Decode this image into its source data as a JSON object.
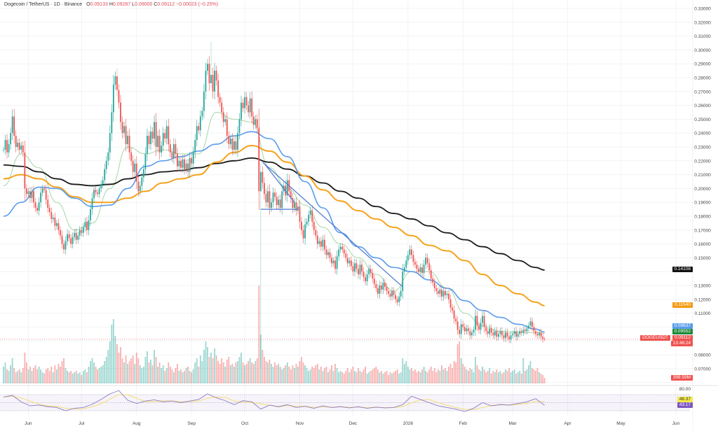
{
  "header": {
    "symbol": "Dogecoin / TetherUS · 1D · Binance",
    "open_label": "O",
    "open": "0.09133",
    "high_label": "H",
    "high": "0.09287",
    "low_label": "L",
    "low": "0.09000",
    "close_label": "C",
    "close": "0.09112",
    "change": "−0.00023 (−0.25%)"
  },
  "colors": {
    "up": "#26a69a",
    "down": "#ef5350",
    "ma200": "#1a1a1a",
    "ma100": "#f7a21b",
    "ma50": "#5b9cec",
    "ma20": "#a5d6a7",
    "trendline": "#4a78d0",
    "rsi": "#8e7cc3",
    "rsi_ma": "#f3e08a"
  },
  "tags": {
    "ma200": "0.14108",
    "ma100": "0.11540",
    "ma50": "0.09637",
    "ma20": "0.09552",
    "last_price": "0.09112",
    "countdown": "13:46:24",
    "symbol": "DOGEUSDT",
    "volume": "399.59M",
    "rsi_top": "80.00",
    "rsi_ma": "48.37",
    "rsi": "43.17"
  },
  "chart_data": {
    "type": "candlestick",
    "interval": "1D",
    "first_date": "2025-05-18",
    "y_axis": {
      "range": [
        0.06,
        0.335
      ],
      "scale": "linear",
      "position": "right",
      "tick_labels": [
        "0.33000",
        "0.32000",
        "0.31000",
        "0.30000",
        "0.29000",
        "0.28000",
        "0.27000",
        "0.26000",
        "0.25000",
        "0.24000",
        "0.23000",
        "0.22000",
        "0.21000",
        "0.20000",
        "0.19000",
        "0.18000",
        "0.17000",
        "0.16000",
        "0.15000",
        "0.13000",
        "0.12000",
        "0.11000",
        "0.08000",
        "0.07000"
      ]
    },
    "x_axis": {
      "tick_labels": [
        {
          "label": "Jun",
          "date": "2025-06-01"
        },
        {
          "label": "Jul",
          "date": "2025-07-01"
        },
        {
          "label": "Aug",
          "date": "2025-08-01"
        },
        {
          "label": "Sep",
          "date": "2025-09-01"
        },
        {
          "label": "Oct",
          "date": "2025-10-01"
        },
        {
          "label": "Nov",
          "date": "2025-11-01"
        },
        {
          "label": "Dec",
          "date": "2025-12-01"
        },
        {
          "label": "2026",
          "date": "2026-01-01"
        },
        {
          "label": "Feb",
          "date": "2026-02-01"
        },
        {
          "label": "Mar",
          "date": "2026-03-01"
        },
        {
          "label": "Apr",
          "date": "2026-04-01"
        },
        {
          "label": "May",
          "date": "2026-05-01"
        },
        {
          "label": "Jun",
          "date": "2026-06-01"
        }
      ]
    },
    "grid": true,
    "closes": [
      0.228,
      0.235,
      0.226,
      0.232,
      0.24,
      0.252,
      0.238,
      0.23,
      0.233,
      0.228,
      0.231,
      0.226,
      0.2,
      0.196,
      0.198,
      0.193,
      0.198,
      0.19,
      0.186,
      0.184,
      0.19,
      0.197,
      0.2,
      0.199,
      0.192,
      0.186,
      0.183,
      0.178,
      0.179,
      0.173,
      0.175,
      0.17,
      0.166,
      0.16,
      0.156,
      0.162,
      0.167,
      0.164,
      0.16,
      0.165,
      0.168,
      0.163,
      0.166,
      0.17,
      0.168,
      0.172,
      0.176,
      0.17,
      0.177,
      0.185,
      0.193,
      0.199,
      0.197,
      0.196,
      0.2,
      0.203,
      0.206,
      0.214,
      0.22,
      0.226,
      0.24,
      0.255,
      0.275,
      0.281,
      0.271,
      0.262,
      0.248,
      0.24,
      0.245,
      0.232,
      0.238,
      0.226,
      0.22,
      0.212,
      0.218,
      0.205,
      0.198,
      0.202,
      0.208,
      0.214,
      0.225,
      0.238,
      0.232,
      0.241,
      0.236,
      0.248,
      0.23,
      0.238,
      0.226,
      0.231,
      0.24,
      0.236,
      0.245,
      0.232,
      0.226,
      0.222,
      0.232,
      0.225,
      0.216,
      0.22,
      0.215,
      0.221,
      0.214,
      0.218,
      0.212,
      0.222,
      0.218,
      0.226,
      0.235,
      0.245,
      0.242,
      0.252,
      0.256,
      0.27,
      0.285,
      0.29,
      0.276,
      0.282,
      0.27,
      0.285,
      0.278,
      0.266,
      0.262,
      0.255,
      0.248,
      0.25,
      0.238,
      0.232,
      0.236,
      0.228,
      0.234,
      0.228,
      0.24,
      0.25,
      0.262,
      0.258,
      0.266,
      0.26,
      0.255,
      0.265,
      0.252,
      0.246,
      0.25,
      0.244,
      0.198,
      0.212,
      0.204,
      0.196,
      0.19,
      0.198,
      0.186,
      0.19,
      0.197,
      0.194,
      0.188,
      0.192,
      0.186,
      0.198,
      0.202,
      0.195,
      0.206,
      0.198,
      0.193,
      0.186,
      0.19,
      0.184,
      0.187,
      0.176,
      0.17,
      0.164,
      0.174,
      0.176,
      0.181,
      0.184,
      0.176,
      0.17,
      0.166,
      0.16,
      0.162,
      0.158,
      0.163,
      0.156,
      0.152,
      0.154,
      0.15,
      0.146,
      0.148,
      0.142,
      0.151,
      0.156,
      0.158,
      0.156,
      0.153,
      0.15,
      0.146,
      0.148,
      0.144,
      0.14,
      0.146,
      0.142,
      0.138,
      0.145,
      0.14,
      0.136,
      0.133,
      0.138,
      0.142,
      0.139,
      0.135,
      0.131,
      0.128,
      0.124,
      0.13,
      0.127,
      0.132,
      0.129,
      0.126,
      0.124,
      0.122,
      0.126,
      0.123,
      0.12,
      0.118,
      0.122,
      0.126,
      0.14,
      0.143,
      0.148,
      0.152,
      0.156,
      0.152,
      0.147,
      0.145,
      0.142,
      0.14,
      0.143,
      0.139,
      0.145,
      0.15,
      0.146,
      0.141,
      0.135,
      0.132,
      0.128,
      0.126,
      0.124,
      0.127,
      0.122,
      0.126,
      0.123,
      0.124,
      0.12,
      0.114,
      0.112,
      0.106,
      0.104,
      0.098,
      0.095,
      0.102,
      0.1,
      0.097,
      0.099,
      0.097,
      0.094,
      0.096,
      0.098,
      0.108,
      0.101,
      0.098,
      0.103,
      0.108,
      0.1,
      0.097,
      0.095,
      0.099,
      0.096,
      0.094,
      0.097,
      0.093,
      0.095,
      0.097,
      0.094,
      0.092,
      0.096,
      0.093,
      0.091,
      0.094,
      0.095,
      0.097,
      0.093,
      0.095,
      0.097,
      0.096,
      0.098,
      0.097,
      0.099,
      0.101,
      0.104,
      0.1,
      0.097,
      0.095,
      0.094,
      0.096,
      0.093,
      0.09133,
      0.09112
    ],
    "extreme_wicks": [
      {
        "date": "2025-07-21",
        "high": 0.287
      },
      {
        "date": "2025-09-12",
        "high": 0.306
      },
      {
        "date": "2025-10-10",
        "low": 0.07
      }
    ],
    "volume_billions": [
      1.2,
      1.5,
      1.0,
      0.9,
      1.3,
      1.8,
      1.1,
      0.8,
      0.9,
      1.0,
      0.8,
      1.1,
      2.2,
      1.5,
      1.0,
      1.2,
      0.9,
      1.1,
      1.3,
      1.0,
      1.2,
      1.0,
      0.8,
      0.7,
      1.0,
      1.1,
      0.9,
      1.2,
      0.8,
      1.3,
      1.0,
      1.4,
      1.2,
      1.6,
      1.8,
      1.1,
      0.9,
      0.8,
      0.9,
      0.7,
      0.8,
      0.9,
      0.7,
      0.8,
      0.6,
      0.9,
      1.0,
      0.8,
      1.2,
      1.6,
      1.8,
      1.5,
      1.2,
      1.0,
      1.1,
      1.2,
      1.3,
      1.6,
      1.9,
      2.4,
      3.0,
      4.2,
      4.6,
      3.4,
      2.8,
      2.2,
      2.6,
      1.8,
      1.5,
      2.0,
      1.4,
      1.6,
      1.8,
      2.0,
      1.4,
      2.2,
      1.8,
      1.3,
      1.1,
      1.2,
      1.9,
      2.3,
      1.5,
      1.7,
      1.3,
      2.4,
      1.9,
      1.2,
      1.5,
      1.1,
      1.3,
      0.9,
      1.1,
      1.5,
      1.2,
      1.0,
      0.8,
      1.1,
      1.4,
      0.9,
      1.0,
      0.8,
      0.9,
      1.1,
      1.2,
      0.9,
      0.8,
      1.0,
      1.5,
      1.8,
      1.2,
      2.0,
      1.6,
      2.4,
      3.0,
      2.6,
      1.9,
      2.2,
      1.8,
      2.5,
      2.0,
      1.6,
      1.4,
      1.8,
      1.5,
      1.2,
      1.7,
      1.9,
      1.3,
      1.4,
      1.2,
      1.5,
      1.6,
      1.9,
      2.2,
      1.5,
      1.3,
      1.4,
      1.6,
      1.8,
      1.5,
      1.4,
      1.6,
      1.8,
      7.0,
      3.5,
      2.4,
      1.9,
      1.6,
      1.5,
      1.7,
      1.4,
      1.2,
      1.5,
      1.3,
      1.4,
      1.2,
      1.0,
      1.1,
      1.3,
      1.5,
      1.2,
      1.0,
      1.3,
      1.1,
      1.4,
      1.2,
      1.6,
      1.9,
      1.5,
      1.3,
      1.1,
      0.9,
      1.0,
      1.2,
      1.1,
      1.3,
      1.4,
      1.0,
      1.2,
      0.9,
      1.1,
      1.2,
      0.8,
      1.0,
      1.3,
      0.9,
      1.4,
      1.1,
      0.8,
      0.9,
      0.8,
      0.7,
      0.9,
      1.1,
      0.8,
      1.0,
      1.2,
      0.9,
      0.8,
      1.1,
      0.9,
      0.8,
      1.0,
      1.2,
      0.7,
      0.8,
      0.9,
      1.0,
      1.1,
      1.2,
      1.0,
      0.8,
      0.9,
      0.7,
      0.8,
      0.9,
      0.6,
      0.8,
      0.7,
      0.8,
      0.9,
      1.0,
      0.7,
      0.8,
      1.8,
      1.4,
      1.6,
      1.2,
      1.0,
      1.1,
      0.9,
      1.0,
      0.8,
      0.9,
      0.8,
      1.0,
      1.2,
      0.9,
      0.8,
      1.0,
      1.2,
      0.9,
      1.1,
      0.8,
      1.0,
      0.9,
      1.3,
      1.0,
      1.1,
      0.9,
      1.2,
      1.4,
      1.1,
      1.6,
      1.5,
      2.8,
      3.0,
      1.8,
      1.4,
      1.2,
      1.0,
      0.9,
      1.1,
      1.0,
      0.8,
      1.9,
      1.3,
      1.0,
      0.9,
      1.2,
      1.0,
      0.8,
      0.9,
      1.1,
      0.7,
      0.9,
      0.8,
      1.0,
      0.8,
      0.9,
      0.7,
      0.8,
      1.0,
      0.9,
      1.1,
      0.8,
      0.9,
      1.0,
      0.7,
      0.8,
      0.9,
      0.7,
      1.8,
      0.9,
      1.0,
      1.3,
      1.6,
      1.1,
      1.0,
      0.9,
      1.1,
      0.8,
      0.7,
      0.6,
      0.4
    ],
    "moving_averages_every_10_days": {
      "ma200": [
        0.217,
        0.216,
        0.212,
        0.207,
        0.203,
        0.202,
        0.203,
        0.207,
        0.21,
        0.212,
        0.213,
        0.215,
        0.218,
        0.22,
        0.222,
        0.219,
        0.214,
        0.209,
        0.204,
        0.198,
        0.193,
        0.187,
        0.182,
        0.178,
        0.173,
        0.168,
        0.163,
        0.158,
        0.153,
        0.148,
        0.143,
        0.14108
      ],
      "ma100": [
        0.207,
        0.21,
        0.207,
        0.201,
        0.194,
        0.19,
        0.19,
        0.193,
        0.198,
        0.204,
        0.207,
        0.21,
        0.219,
        0.226,
        0.231,
        0.227,
        0.219,
        0.209,
        0.199,
        0.191,
        0.184,
        0.178,
        0.172,
        0.166,
        0.159,
        0.155,
        0.148,
        0.138,
        0.13,
        0.124,
        0.118,
        0.1154
      ],
      "ma50": [
        0.18,
        0.19,
        0.201,
        0.2,
        0.193,
        0.187,
        0.188,
        0.2,
        0.216,
        0.22,
        0.223,
        0.227,
        0.232,
        0.238,
        0.241,
        0.236,
        0.223,
        0.205,
        0.186,
        0.168,
        0.158,
        0.15,
        0.143,
        0.14,
        0.134,
        0.128,
        0.119,
        0.112,
        0.107,
        0.102,
        0.0985,
        0.09637
      ],
      "ma20": [
        0.202,
        0.225,
        0.215,
        0.19,
        0.17,
        0.175,
        0.2,
        0.23,
        0.225,
        0.228,
        0.225,
        0.225,
        0.255,
        0.25,
        0.248,
        0.215,
        0.2,
        0.188,
        0.172,
        0.16,
        0.15,
        0.138,
        0.126,
        0.14,
        0.14,
        0.128,
        0.11,
        0.101,
        0.097,
        0.096,
        0.096,
        0.09552
      ]
    },
    "trendlines": [
      {
        "from": {
          "date": "2025-10-11",
          "price": 0.219
        },
        "to": {
          "date": "2025-12-29",
          "price": 0.129
        }
      },
      {
        "from": {
          "date": "2025-10-12",
          "price": 0.218
        },
        "to": {
          "date": "2025-10-29",
          "price": 0.19
        }
      },
      {
        "from": {
          "date": "2025-10-10",
          "price": 0.185
        },
        "to": {
          "date": "2025-10-31",
          "price": 0.185
        }
      }
    ],
    "rsi": {
      "range": [
        0,
        100
      ],
      "bands": [
        30,
        50,
        70
      ],
      "values_every_5_days": [
        64,
        68,
        52,
        42,
        44,
        40,
        38,
        30,
        36,
        38,
        46,
        58,
        72,
        80,
        56,
        48,
        54,
        57,
        52,
        54,
        50,
        54,
        58,
        72,
        62,
        55,
        45,
        55,
        52,
        34,
        44,
        40,
        45,
        38,
        41,
        36,
        42,
        38,
        40,
        37,
        40,
        36,
        39,
        37,
        38,
        45,
        66,
        58,
        50,
        42,
        38,
        34,
        28,
        36,
        50,
        42,
        45,
        44,
        48,
        52,
        60,
        43.17
      ]
    }
  }
}
